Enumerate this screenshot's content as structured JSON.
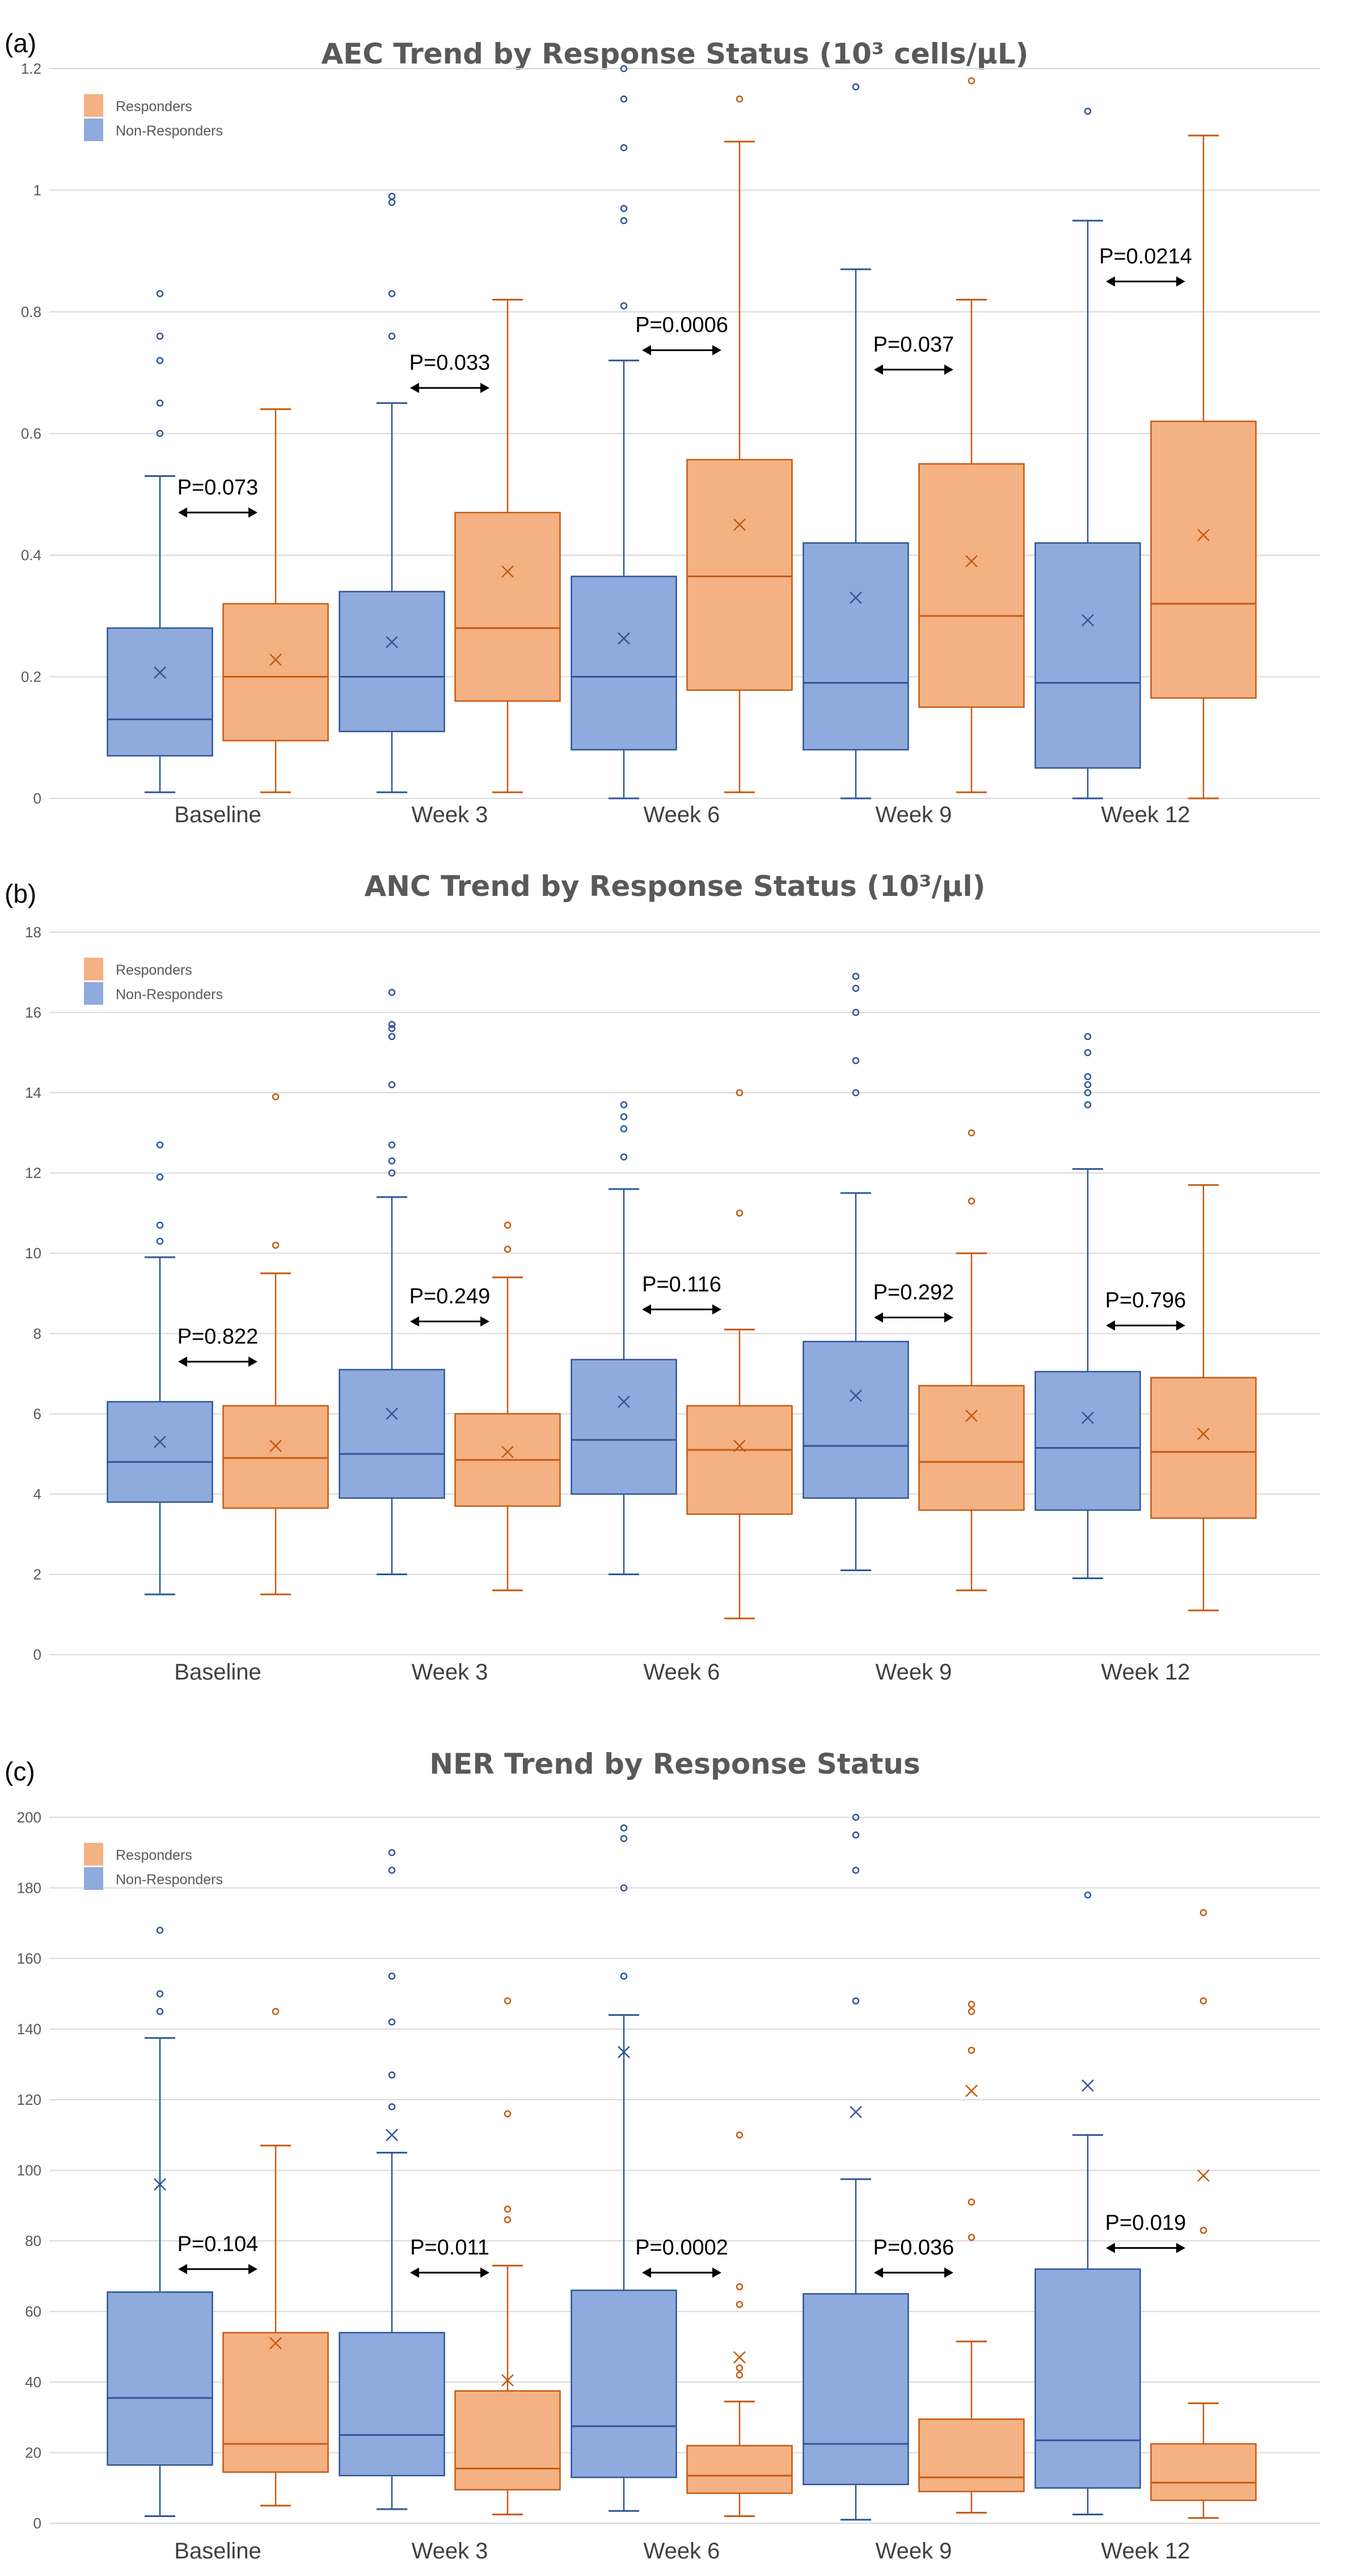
{
  "colors": {
    "responders_fill": "#f4b183",
    "responders_stroke": "#c55a11",
    "nonresponders_fill": "#8faadc",
    "nonresponders_stroke": "#2f5597",
    "grid": "#d9d9d9"
  },
  "chart_data": [
    {
      "panel_label": "(a)",
      "type": "box",
      "title": "AEC Trend by Response Status (10³ cells/µL)",
      "ylim": [
        0,
        1.2
      ],
      "yticks": [
        "0",
        "0.2",
        "0.4",
        "0.6",
        "0.8",
        "1",
        "1.2"
      ],
      "ytick_values": [
        0,
        0.2,
        0.4,
        0.6,
        0.8,
        1,
        1.2
      ],
      "grid": true,
      "legend": {
        "placement": "top-left",
        "entries": [
          "Responders",
          "Non-Responders"
        ]
      },
      "categories": [
        "Baseline",
        "Week 3",
        "Week 6",
        "Week 9",
        "Week 12"
      ],
      "series": [
        {
          "name": "Non-Responders",
          "boxes": [
            {
              "min": 0.01,
              "q1": 0.07,
              "median": 0.13,
              "q3": 0.28,
              "max": 0.53,
              "mean": 0.207,
              "outliers": [
                0.6,
                0.65,
                0.72,
                0.76,
                0.83
              ]
            },
            {
              "min": 0.01,
              "q1": 0.11,
              "median": 0.2,
              "q3": 0.34,
              "max": 0.65,
              "mean": 0.257,
              "outliers": [
                0.76,
                0.83,
                0.98,
                0.99
              ]
            },
            {
              "min": 0.0,
              "q1": 0.08,
              "median": 0.2,
              "q3": 0.365,
              "max": 0.72,
              "mean": 0.263,
              "outliers": [
                0.81,
                0.95,
                0.97,
                1.07,
                1.15,
                1.2
              ]
            },
            {
              "min": 0.0,
              "q1": 0.08,
              "median": 0.19,
              "q3": 0.42,
              "max": 0.87,
              "mean": 0.33,
              "outliers": [
                1.17
              ]
            },
            {
              "min": 0.0,
              "q1": 0.05,
              "median": 0.19,
              "q3": 0.42,
              "max": 0.95,
              "mean": 0.293,
              "outliers": [
                1.13
              ]
            }
          ]
        },
        {
          "name": "Responders",
          "boxes": [
            {
              "min": 0.01,
              "q1": 0.095,
              "median": 0.2,
              "q3": 0.32,
              "max": 0.64,
              "mean": 0.228,
              "outliers": []
            },
            {
              "min": 0.01,
              "q1": 0.16,
              "median": 0.28,
              "q3": 0.47,
              "max": 0.82,
              "mean": 0.373,
              "outliers": []
            },
            {
              "min": 0.01,
              "q1": 0.178,
              "median": 0.365,
              "q3": 0.557,
              "max": 1.08,
              "mean": 0.45,
              "outliers": [
                1.15
              ]
            },
            {
              "min": 0.01,
              "q1": 0.15,
              "median": 0.3,
              "q3": 0.55,
              "max": 0.82,
              "mean": 0.39,
              "outliers": [
                1.18
              ]
            },
            {
              "min": 0.0,
              "q1": 0.165,
              "median": 0.32,
              "q3": 0.62,
              "max": 1.09,
              "mean": 0.433,
              "outliers": []
            }
          ]
        }
      ],
      "annotations": [
        {
          "text": "P=0.073",
          "y": 0.47
        },
        {
          "text": "P=0.033",
          "y": 0.675
        },
        {
          "text": "P=0.0006",
          "y": 0.737
        },
        {
          "text": "P=0.037",
          "y": 0.705
        },
        {
          "text": "P=0.0214",
          "y": 0.85
        }
      ]
    },
    {
      "panel_label": "(b)",
      "type": "box",
      "title": "ANC Trend by Response Status (10³/µl)",
      "ylim": [
        0,
        18
      ],
      "yticks": [
        "0",
        "2",
        "4",
        "6",
        "8",
        "10",
        "12",
        "14",
        "16",
        "18"
      ],
      "ytick_values": [
        0,
        2,
        4,
        6,
        8,
        10,
        12,
        14,
        16,
        18
      ],
      "grid": true,
      "legend": {
        "placement": "top-left",
        "entries": [
          "Responders",
          "Non-Responders"
        ]
      },
      "categories": [
        "Baseline",
        "Week 3",
        "Week 6",
        "Week 9",
        "Week 12"
      ],
      "series": [
        {
          "name": "Non-Responders",
          "boxes": [
            {
              "min": 1.5,
              "q1": 3.8,
              "median": 4.8,
              "q3": 6.3,
              "max": 9.9,
              "mean": 5.3,
              "outliers": [
                10.3,
                10.7,
                11.9,
                12.7
              ]
            },
            {
              "min": 2.0,
              "q1": 3.9,
              "median": 5.0,
              "q3": 7.1,
              "max": 11.4,
              "mean": 6.0,
              "outliers": [
                12.0,
                12.3,
                12.7,
                14.2,
                15.4,
                15.6,
                15.7,
                16.5
              ]
            },
            {
              "min": 2.0,
              "q1": 4.0,
              "median": 5.35,
              "q3": 7.35,
              "max": 11.6,
              "mean": 6.3,
              "outliers": [
                12.4,
                13.1,
                13.4,
                13.7
              ]
            },
            {
              "min": 2.1,
              "q1": 3.9,
              "median": 5.2,
              "q3": 7.8,
              "max": 11.5,
              "mean": 6.45,
              "outliers": [
                14.0,
                14.8,
                16.0,
                16.6,
                16.9
              ]
            },
            {
              "min": 1.9,
              "q1": 3.6,
              "median": 5.15,
              "q3": 7.05,
              "max": 12.1,
              "mean": 5.9,
              "outliers": [
                13.7,
                14.0,
                14.2,
                14.4,
                15.0,
                15.4
              ]
            }
          ]
        },
        {
          "name": "Responders",
          "boxes": [
            {
              "min": 1.5,
              "q1": 3.65,
              "median": 4.9,
              "q3": 6.2,
              "max": 9.5,
              "mean": 5.2,
              "outliers": [
                10.2,
                13.9
              ]
            },
            {
              "min": 1.6,
              "q1": 3.7,
              "median": 4.85,
              "q3": 6.0,
              "max": 9.4,
              "mean": 5.05,
              "outliers": [
                10.1,
                10.7
              ]
            },
            {
              "min": 0.9,
              "q1": 3.5,
              "median": 5.1,
              "q3": 6.2,
              "max": 8.1,
              "mean": 5.2,
              "outliers": [
                11.0,
                14.0
              ]
            },
            {
              "min": 1.6,
              "q1": 3.6,
              "median": 4.8,
              "q3": 6.7,
              "max": 10.0,
              "mean": 5.95,
              "outliers": [
                11.3,
                13.0
              ]
            },
            {
              "min": 1.1,
              "q1": 3.4,
              "median": 5.05,
              "q3": 6.9,
              "max": 11.7,
              "mean": 5.5,
              "outliers": []
            }
          ]
        }
      ],
      "annotations": [
        {
          "text": "P=0.822",
          "y": 7.3
        },
        {
          "text": "P=0.249",
          "y": 8.3
        },
        {
          "text": "P=0.116",
          "y": 8.6
        },
        {
          "text": "P=0.292",
          "y": 8.4
        },
        {
          "text": "P=0.796",
          "y": 8.2
        }
      ]
    },
    {
      "panel_label": "(c)",
      "type": "box",
      "title": "NER Trend by Response Status",
      "ylim": [
        0,
        200
      ],
      "yticks": [
        "0",
        "20",
        "40",
        "60",
        "80",
        "100",
        "120",
        "140",
        "160",
        "180",
        "200"
      ],
      "ytick_values": [
        0,
        20,
        40,
        60,
        80,
        100,
        120,
        140,
        160,
        180,
        200
      ],
      "grid": true,
      "legend": {
        "placement": "top-left",
        "entries": [
          "Responders",
          "Non-Responders"
        ]
      },
      "categories": [
        "Baseline",
        "Week 3",
        "Week 6",
        "Week 9",
        "Week 12"
      ],
      "series": [
        {
          "name": "Non-Responders",
          "boxes": [
            {
              "min": 2,
              "q1": 16.5,
              "median": 35.5,
              "q3": 65.5,
              "max": 137.5,
              "mean": 96,
              "outliers": [
                145,
                150,
                168
              ]
            },
            {
              "min": 4,
              "q1": 13.5,
              "median": 25,
              "q3": 54,
              "max": 105,
              "mean": 110,
              "outliers": [
                118,
                127,
                142,
                155,
                185,
                190
              ]
            },
            {
              "min": 3.5,
              "q1": 13,
              "median": 27.5,
              "q3": 66,
              "max": 144,
              "mean": 133.5,
              "outliers": [
                155,
                180,
                194,
                197
              ]
            },
            {
              "min": 1,
              "q1": 11,
              "median": 22.5,
              "q3": 65,
              "max": 97.5,
              "mean": 116.5,
              "outliers": [
                148,
                185,
                195,
                200
              ]
            },
            {
              "min": 2.5,
              "q1": 10,
              "median": 23.5,
              "q3": 72,
              "max": 110,
              "mean": 124,
              "outliers": [
                178
              ]
            }
          ]
        },
        {
          "name": "Responders",
          "boxes": [
            {
              "min": 5,
              "q1": 14.5,
              "median": 22.5,
              "q3": 54,
              "max": 107,
              "mean": 51,
              "outliers": [
                145
              ]
            },
            {
              "min": 2.5,
              "q1": 9.5,
              "median": 15.5,
              "q3": 37.5,
              "max": 73,
              "mean": 40.5,
              "outliers": [
                86,
                89,
                116,
                148
              ]
            },
            {
              "min": 2,
              "q1": 8.5,
              "median": 13.5,
              "q3": 22,
              "max": 34.5,
              "mean": 47,
              "outliers": [
                42,
                44,
                62,
                67,
                110
              ]
            },
            {
              "min": 3,
              "q1": 9,
              "median": 13,
              "q3": 29.5,
              "max": 51.5,
              "mean": 122.5,
              "outliers": [
                81,
                91,
                134,
                145,
                147
              ]
            },
            {
              "min": 1.5,
              "q1": 6.5,
              "median": 11.5,
              "q3": 22.5,
              "max": 34,
              "mean": 98.5,
              "outliers": [
                83,
                148,
                173
              ]
            }
          ]
        }
      ],
      "annotations": [
        {
          "text": "P=0.104",
          "y": 72
        },
        {
          "text": "P=0.011",
          "y": 71
        },
        {
          "text": "P=0.0002",
          "y": 71
        },
        {
          "text": "P=0.036",
          "y": 71
        },
        {
          "text": "P=0.019",
          "y": 78
        }
      ]
    }
  ]
}
